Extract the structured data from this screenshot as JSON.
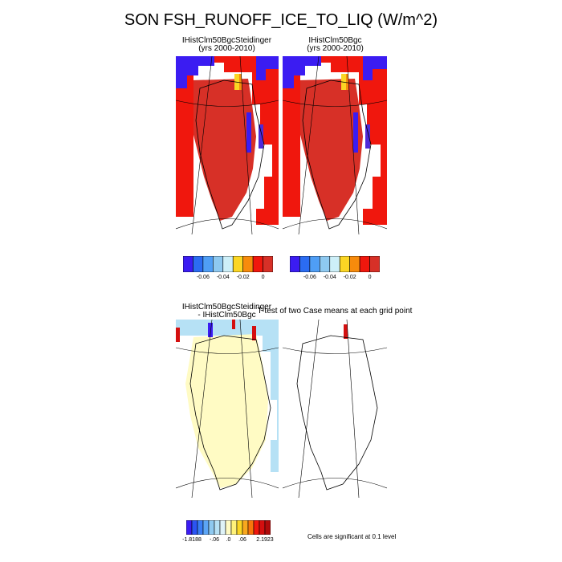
{
  "figure": {
    "title": "SON FSH_RUNOFF_ICE_TO_LIQ (W/m^2)"
  },
  "panels": {
    "top_left": {
      "title_line1": "IHistClm50BgcSteidinger",
      "title_line2": "(yrs 2000-2010)"
    },
    "top_right": {
      "title_line1": "IHistClm50Bgc",
      "title_line2": "(yrs 2000-2010)"
    },
    "bottom_left": {
      "title_line1": "IHistClm50BgcSteidinger",
      "title_line2": "- IHistClm50Bgc"
    },
    "bottom_right": {
      "title": "T-test of two Case means at each grid point"
    }
  },
  "colorbars": {
    "top": {
      "colors": [
        "#3b1cf2",
        "#2b6cf2",
        "#4f9ef5",
        "#8ec9f0",
        "#cdeff8",
        "#fbd624",
        "#f78b0c",
        "#f0170d",
        "#d73027"
      ],
      "tick_labels": [
        "-0.06",
        "-0.04",
        "-0.02",
        "0"
      ]
    },
    "bottom": {
      "colors": [
        "#3b1cf2",
        "#2b54f2",
        "#3a7ef5",
        "#5ca5f5",
        "#8ec9f0",
        "#b6e1f5",
        "#dff3f8",
        "#fffbc4",
        "#fff27a",
        "#fbd624",
        "#f9a81e",
        "#f7760c",
        "#f0170d",
        "#d40f0f",
        "#b00b0b"
      ],
      "tick_labels": [
        "-1.8188",
        "-.06",
        ".0",
        ".06",
        "2.1923"
      ]
    }
  },
  "note": "Cells are significant at 0.1 level",
  "chart_data": [
    {
      "type": "heatmap",
      "title": "IHistClm50BgcSteidinger (yrs 2000-2010)",
      "colorbar_ticks": [
        -0.06,
        -0.04,
        -0.02,
        0
      ],
      "dominant_value_range": [
        0,
        0.01
      ],
      "description": "Greenland mostly near 0 (red), negative cells along NW coast (blue) and one orange strip"
    },
    {
      "type": "heatmap",
      "title": "IHistClm50Bgc (yrs 2000-2010)",
      "colorbar_ticks": [
        -0.06,
        -0.04,
        -0.02,
        0
      ],
      "dominant_value_range": [
        0,
        0.01
      ]
    },
    {
      "type": "heatmap",
      "title": "IHistClm50BgcSteidinger - IHistClm50Bgc",
      "colorbar_ticks": [
        -1.8188,
        -0.06,
        0.0,
        0.06,
        2.1923
      ],
      "data_range": [
        -1.8188,
        2.1923
      ]
    },
    {
      "type": "heatmap",
      "title": "T-test of two Case means at each grid point"
    }
  ]
}
